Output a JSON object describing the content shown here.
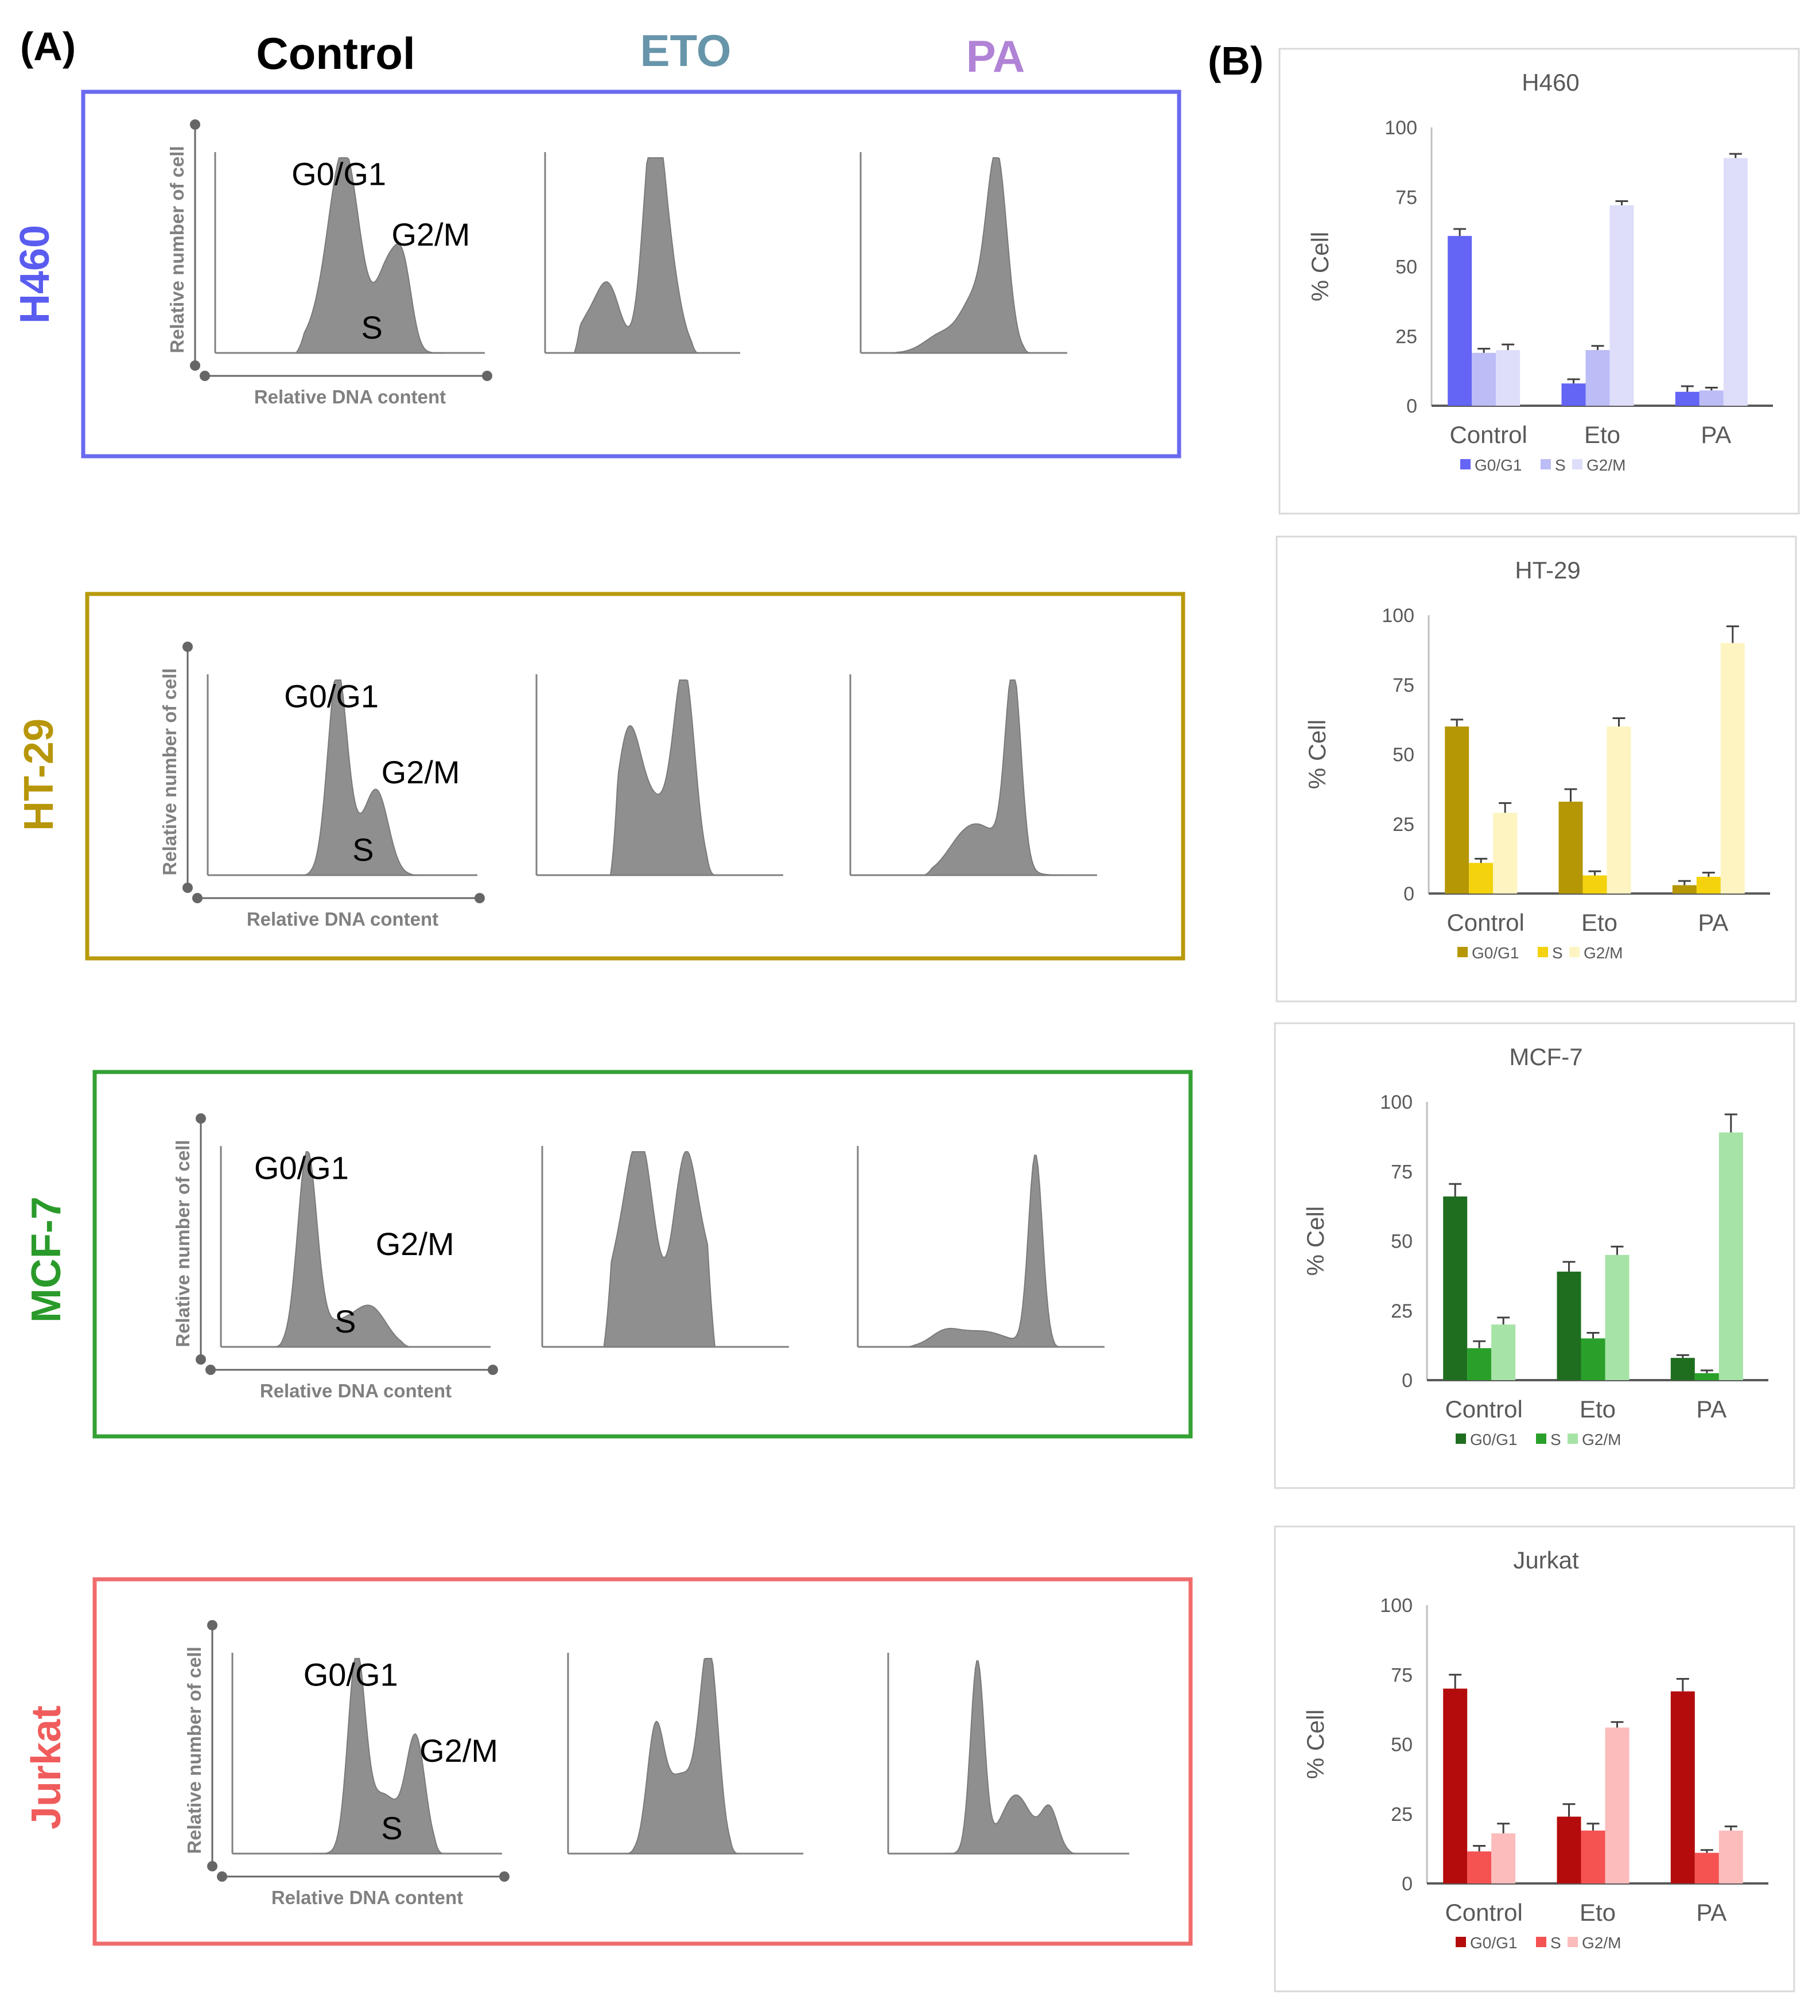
{
  "panel_labels": {
    "a": "(A)",
    "b": "(B)"
  },
  "conditions": [
    "Control",
    "ETO",
    "PA"
  ],
  "colors": {
    "control_title": "#000000",
    "eto_title": "#6795aa",
    "pa_title": "#b183d6",
    "histogram_fill": "#8f8f8f",
    "h460": {
      "label": "#5a5cf0",
      "border": "#6a6af0",
      "series": [
        "#6464f5",
        "#bcbcf6",
        "#dedefa"
      ]
    },
    "ht29": {
      "label": "#b8960a",
      "border": "#b89a0c",
      "series": [
        "#b59706",
        "#f4d20d",
        "#fdf4c1"
      ]
    },
    "mcf7": {
      "label": "#2a9a2a",
      "border": "#33a133",
      "series": [
        "#1f6e1f",
        "#2aa02a",
        "#a6e3a6"
      ]
    },
    "jurkat": {
      "label": "#f05c5c",
      "border": "#f06c6c",
      "series": [
        "#b40c0c",
        "#f55252",
        "#fcbcbc"
      ]
    }
  },
  "histogram_labels": {
    "y_axis": "Relative number of cell",
    "x_axis": "Relative DNA content"
  },
  "cell_lines": [
    {
      "key": "h460",
      "name": "H460",
      "phase_labels": [
        "G0/G1",
        "G2/M",
        "S"
      ]
    },
    {
      "key": "ht29",
      "name": "HT-29",
      "phase_labels": [
        "G0/G1",
        "G2/M",
        "S"
      ]
    },
    {
      "key": "mcf7",
      "name": "MCF-7",
      "phase_labels": [
        "G0/G1",
        "G2/M",
        "S"
      ]
    },
    {
      "key": "jurkat",
      "name": "Jurkat",
      "phase_labels": [
        "G0/G1",
        "G2/M",
        "S"
      ]
    }
  ],
  "chart_data": [
    {
      "type": "bar",
      "title": "H460",
      "categories": [
        "Control",
        "Eto",
        "PA"
      ],
      "ylabel": "% Cell",
      "xlabel": "",
      "ylim": [
        0,
        100
      ],
      "yticks": [
        0,
        25,
        50,
        75,
        100
      ],
      "series": [
        {
          "name": "G0/G1",
          "values": [
            61,
            8,
            5
          ],
          "errors": [
            2.5,
            1.5,
            2
          ]
        },
        {
          "name": "S",
          "values": [
            19,
            20,
            5.5
          ],
          "errors": [
            1.5,
            1.5,
            1
          ]
        },
        {
          "name": "G2/M",
          "values": [
            20,
            72,
            89
          ],
          "errors": [
            2,
            1.5,
            1.5
          ]
        }
      ]
    },
    {
      "type": "bar",
      "title": "HT-29",
      "categories": [
        "Control",
        "Eto",
        "PA"
      ],
      "ylabel": "% Cell",
      "xlabel": "",
      "ylim": [
        0,
        100
      ],
      "yticks": [
        0,
        25,
        50,
        75,
        100
      ],
      "series": [
        {
          "name": "G0/G1",
          "values": [
            60,
            33,
            3
          ],
          "errors": [
            2.5,
            4.5,
            1.5
          ]
        },
        {
          "name": "S",
          "values": [
            11,
            6.5,
            6
          ],
          "errors": [
            1.5,
            1.5,
            1.5
          ]
        },
        {
          "name": "G2/M",
          "values": [
            29,
            60,
            90
          ],
          "errors": [
            3.5,
            3,
            6
          ]
        }
      ]
    },
    {
      "type": "bar",
      "title": "MCF-7",
      "categories": [
        "Control",
        "Eto",
        "PA"
      ],
      "ylabel": "% Cell",
      "xlabel": "",
      "ylim": [
        0,
        100
      ],
      "yticks": [
        0,
        25,
        50,
        75,
        100
      ],
      "series": [
        {
          "name": "G0/G1",
          "values": [
            66,
            39,
            8
          ],
          "errors": [
            4.5,
            3.5,
            1
          ]
        },
        {
          "name": "S",
          "values": [
            11.5,
            15,
            2.5
          ],
          "errors": [
            2.5,
            2,
            1
          ]
        },
        {
          "name": "G2/M",
          "values": [
            20,
            45,
            89
          ],
          "errors": [
            2.5,
            3,
            6.5
          ]
        }
      ]
    },
    {
      "type": "bar",
      "title": "Jurkat",
      "categories": [
        "Control",
        "Eto",
        "PA"
      ],
      "ylabel": "% Cell",
      "xlabel": "",
      "ylim": [
        0,
        100
      ],
      "yticks": [
        0,
        25,
        50,
        75,
        100
      ],
      "series": [
        {
          "name": "G0/G1",
          "values": [
            70,
            24,
            69
          ],
          "errors": [
            5,
            4.5,
            4.5
          ]
        },
        {
          "name": "S",
          "values": [
            11.5,
            19,
            11
          ],
          "errors": [
            2,
            2.5,
            1
          ]
        },
        {
          "name": "G2/M",
          "values": [
            18,
            56,
            19
          ],
          "errors": [
            3.5,
            2,
            1.5
          ]
        }
      ]
    }
  ]
}
